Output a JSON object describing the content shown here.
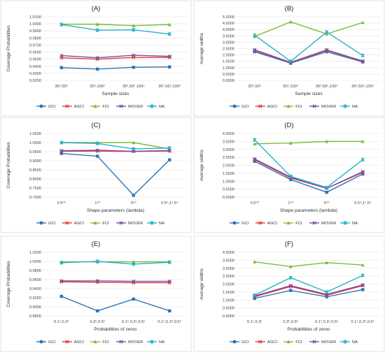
{
  "chart_data": [
    {
      "type": "line",
      "title": "(A)",
      "xlabel": "Sample sizes",
      "ylabel": "Coverage Probabilities",
      "categories": [
        "30⁵,50⁵",
        "50⁵,100⁵",
        "30⁵,50⁵,100⁵",
        "30⁵,50⁵,100⁴"
      ],
      "ylim": [
        0.92,
        1.01
      ],
      "yticks": [
        "0.9200",
        "0.9300",
        "0.9400",
        "0.9500",
        "0.9600",
        "0.9700",
        "0.9800",
        "0.9900",
        "1.0000",
        "1.0100"
      ],
      "series": [
        {
          "name": "GCI",
          "values": [
            0.938,
            0.936,
            0.9385,
            0.939
          ]
        },
        {
          "name": "AGCI",
          "values": [
            0.952,
            0.95,
            0.9525,
            0.9525
          ]
        },
        {
          "name": "FCI",
          "values": [
            0.9995,
            0.9995,
            0.9975,
            0.999
          ]
        },
        {
          "name": "MOVER",
          "values": [
            0.955,
            0.952,
            0.9555,
            0.954
          ]
        },
        {
          "name": "NA",
          "values": [
            0.999,
            0.991,
            0.9915,
            0.9855
          ]
        }
      ]
    },
    {
      "type": "line",
      "title": "(B)",
      "xlabel": "Sample sizes",
      "ylabel": "Average widths",
      "categories": [
        "30⁵,50⁵",
        "50⁵,100⁵",
        "30⁵,50⁵,100⁵",
        "30⁵,50⁵,100⁴"
      ],
      "ylim": [
        0,
        5
      ],
      "yticks": [
        "0.0000",
        "0.5000",
        "1.0000",
        "1.5000",
        "2.0000",
        "2.5000",
        "3.0000",
        "3.5000",
        "4.0000",
        "4.5000",
        "5.0000"
      ],
      "series": [
        {
          "name": "GCI",
          "values": [
            2.25,
            1.35,
            2.25,
            1.45
          ]
        },
        {
          "name": "AGCI",
          "values": [
            2.35,
            1.4,
            2.35,
            1.5
          ]
        },
        {
          "name": "FCI",
          "values": [
            3.45,
            4.6,
            3.65,
            4.55
          ]
        },
        {
          "name": "MOVER",
          "values": [
            2.4,
            1.42,
            2.4,
            1.52
          ]
        },
        {
          "name": "NA",
          "values": [
            3.55,
            1.5,
            3.8,
            1.95
          ]
        }
      ]
    },
    {
      "type": "line",
      "title": "(C)",
      "xlabel": "Shape parameters (lambda)",
      "ylabel": "Coverage Probabilities",
      "categories": [
        "0.5⁵⁰",
        "1⁵⁰",
        "5⁵⁰",
        "0.5⁴,1⁴,5⁴"
      ],
      "ylim": [
        0.7,
        1.05
      ],
      "yticks": [
        "0.7000",
        "0.7500",
        "0.8000",
        "0.8500",
        "0.9000",
        "0.9500",
        "1.0000",
        "1.0500"
      ],
      "series": [
        {
          "name": "GCI",
          "values": [
            0.94,
            0.925,
            0.71,
            0.905
          ]
        },
        {
          "name": "AGCI",
          "values": [
            0.952,
            0.953,
            0.951,
            0.953
          ]
        },
        {
          "name": "FCI",
          "values": [
            1.0,
            1.0,
            1.0,
            0.965
          ]
        },
        {
          "name": "MOVER",
          "values": [
            0.955,
            0.958,
            0.952,
            0.956
          ]
        },
        {
          "name": "NA",
          "values": [
            1.0,
            0.995,
            0.965,
            0.97
          ]
        }
      ]
    },
    {
      "type": "line",
      "title": "(D)",
      "xlabel": "Shape parameters (lambda)",
      "ylabel": "Average widths",
      "categories": [
        "0.5⁵⁰",
        "1⁵⁰",
        "5⁵⁰",
        "0.5⁴,1⁴,5⁴"
      ],
      "ylim": [
        0,
        4
      ],
      "yticks": [
        "0.0000",
        "0.5000",
        "1.0000",
        "1.5000",
        "2.0000",
        "2.5000",
        "3.0000",
        "3.5000",
        "4.0000"
      ],
      "series": [
        {
          "name": "GCI",
          "values": [
            2.25,
            1.1,
            0.3,
            1.45
          ]
        },
        {
          "name": "AGCI",
          "values": [
            2.35,
            1.2,
            0.55,
            1.55
          ]
        },
        {
          "name": "FCI",
          "values": [
            3.35,
            3.4,
            3.5,
            3.5
          ]
        },
        {
          "name": "MOVER",
          "values": [
            2.4,
            1.25,
            0.55,
            1.6
          ]
        },
        {
          "name": "NA",
          "values": [
            3.6,
            1.3,
            0.6,
            2.35
          ]
        }
      ]
    },
    {
      "type": "line",
      "title": "(E)",
      "xlabel": "Probabilities of zeros",
      "ylabel": "Coverage Probabilities",
      "categories": [
        "0.1⁵,0.3⁵",
        "0.3⁵,0.5⁵",
        "0.1⁵,0.3⁵,0.5⁵",
        "0.1⁴,0.3⁴,0.5⁴"
      ],
      "ylim": [
        0.88,
        1.02
      ],
      "yticks": [
        "0.8800",
        "0.9000",
        "0.9200",
        "0.9400",
        "0.9600",
        "0.9800",
        "1.0000",
        "1.0200"
      ],
      "series": [
        {
          "name": "GCI",
          "values": [
            0.923,
            0.891,
            0.917,
            0.891
          ]
        },
        {
          "name": "AGCI",
          "values": [
            0.955,
            0.954,
            0.953,
            0.953
          ]
        },
        {
          "name": "FCI",
          "values": [
            0.999,
            0.999,
            0.999,
            0.999
          ]
        },
        {
          "name": "MOVER",
          "values": [
            0.957,
            0.957,
            0.956,
            0.956
          ]
        },
        {
          "name": "NA",
          "values": [
            0.997,
            1.0,
            0.994,
            0.998
          ]
        }
      ]
    },
    {
      "type": "line",
      "title": "(F)",
      "xlabel": "Probabilities of zeros",
      "ylabel": "Average widths",
      "categories": [
        "0.1⁵,0.3⁵",
        "0.3⁵,0.5⁵",
        "0.1⁵,0.3⁵,0.5⁵",
        "0.1⁴,0.3⁴,0.5⁴"
      ],
      "ylim": [
        0,
        4
      ],
      "yticks": [
        "0.0000",
        "0.5000",
        "1.0000",
        "1.5000",
        "2.0000",
        "2.5000",
        "3.0000",
        "3.5000",
        "4.0000"
      ],
      "series": [
        {
          "name": "GCI",
          "values": [
            1.1,
            1.6,
            1.2,
            1.65
          ]
        },
        {
          "name": "AGCI",
          "values": [
            1.2,
            1.85,
            1.3,
            1.9
          ]
        },
        {
          "name": "FCI",
          "values": [
            3.4,
            3.1,
            3.35,
            3.2
          ]
        },
        {
          "name": "MOVER",
          "values": [
            1.25,
            1.9,
            1.35,
            1.95
          ]
        },
        {
          "name": "NA",
          "values": [
            1.3,
            2.4,
            1.5,
            2.55
          ]
        }
      ]
    }
  ],
  "series_styles": [
    {
      "name": "GCI",
      "color": "#2e75b6",
      "marker": "square"
    },
    {
      "name": "AGCI",
      "color": "#e8383d",
      "marker": "x"
    },
    {
      "name": "FCI",
      "color": "#7fba3a",
      "marker": "triangle"
    },
    {
      "name": "MOVER",
      "color": "#7b4fa0",
      "marker": "x"
    },
    {
      "name": "NA",
      "color": "#22b3c9",
      "marker": "star"
    }
  ],
  "legend_placement": "bottom"
}
